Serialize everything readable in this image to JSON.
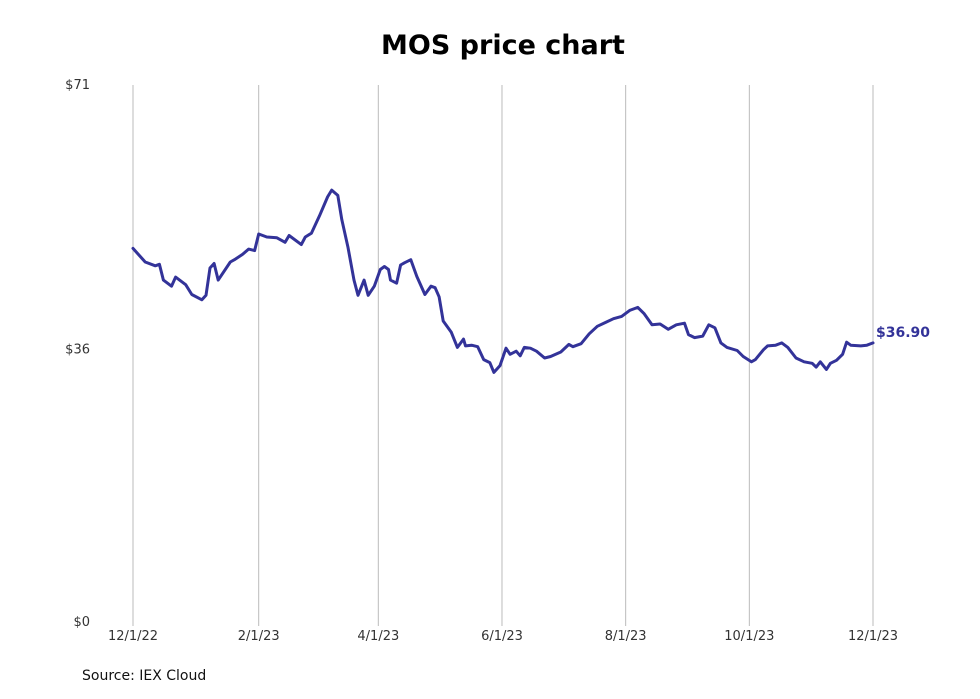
{
  "chart_data": {
    "type": "line",
    "title": "MOS price chart",
    "xlabel": "",
    "ylabel": "",
    "x_ticks": [
      "12/1/22",
      "2/1/23",
      "4/1/23",
      "6/1/23",
      "8/1/23",
      "10/1/23",
      "12/1/23"
    ],
    "y_ticks": [
      "$0",
      "$36",
      "$71"
    ],
    "ylim": [
      0,
      71
    ],
    "xlim": [
      "2022-12-01",
      "2023-12-01"
    ],
    "grid": "vertical",
    "line_color": "#333399",
    "last_value_label": "$36.90",
    "series": [
      {
        "points": [
          [
            "2022-12-01",
            49.4
          ],
          [
            "2022-12-07",
            47.6
          ],
          [
            "2022-12-12",
            47.1
          ],
          [
            "2022-12-14",
            47.3
          ],
          [
            "2022-12-16",
            45.2
          ],
          [
            "2022-12-20",
            44.4
          ],
          [
            "2022-12-22",
            45.6
          ],
          [
            "2022-12-27",
            44.6
          ],
          [
            "2022-12-30",
            43.3
          ],
          [
            "2023-01-04",
            42.6
          ],
          [
            "2023-01-06",
            43.2
          ],
          [
            "2023-01-08",
            46.8
          ],
          [
            "2023-01-10",
            47.4
          ],
          [
            "2023-01-12",
            45.2
          ],
          [
            "2023-01-18",
            47.6
          ],
          [
            "2023-01-20",
            47.9
          ],
          [
            "2023-01-24",
            48.6
          ],
          [
            "2023-01-27",
            49.3
          ],
          [
            "2023-01-30",
            49.1
          ],
          [
            "2023-02-01",
            51.3
          ],
          [
            "2023-02-05",
            50.9
          ],
          [
            "2023-02-10",
            50.8
          ],
          [
            "2023-02-14",
            50.2
          ],
          [
            "2023-02-16",
            51.1
          ],
          [
            "2023-02-22",
            49.9
          ],
          [
            "2023-02-24",
            50.9
          ],
          [
            "2023-02-27",
            51.4
          ],
          [
            "2023-03-03",
            53.7
          ],
          [
            "2023-03-07",
            56.2
          ],
          [
            "2023-03-09",
            57.1
          ],
          [
            "2023-03-12",
            56.4
          ],
          [
            "2023-03-14",
            53.2
          ],
          [
            "2023-03-17",
            49.6
          ],
          [
            "2023-03-20",
            45.2
          ],
          [
            "2023-03-22",
            43.2
          ],
          [
            "2023-03-25",
            45.2
          ],
          [
            "2023-03-27",
            43.2
          ],
          [
            "2023-03-30",
            44.4
          ],
          [
            "2023-04-02",
            46.6
          ],
          [
            "2023-04-04",
            47.0
          ],
          [
            "2023-04-06",
            46.6
          ],
          [
            "2023-04-07",
            45.2
          ],
          [
            "2023-04-10",
            44.8
          ],
          [
            "2023-04-12",
            47.2
          ],
          [
            "2023-04-14",
            47.5
          ],
          [
            "2023-04-17",
            47.9
          ],
          [
            "2023-04-20",
            45.7
          ],
          [
            "2023-04-24",
            43.3
          ],
          [
            "2023-04-27",
            44.4
          ],
          [
            "2023-04-29",
            44.2
          ],
          [
            "2023-05-01",
            43.0
          ],
          [
            "2023-05-03",
            39.8
          ],
          [
            "2023-05-07",
            38.3
          ],
          [
            "2023-05-10",
            36.3
          ],
          [
            "2023-05-13",
            37.4
          ],
          [
            "2023-05-14",
            36.5
          ],
          [
            "2023-05-17",
            36.6
          ],
          [
            "2023-05-20",
            36.4
          ],
          [
            "2023-05-23",
            34.7
          ],
          [
            "2023-05-26",
            34.3
          ],
          [
            "2023-05-28",
            33.0
          ],
          [
            "2023-05-31",
            33.9
          ],
          [
            "2023-06-03",
            36.2
          ],
          [
            "2023-06-05",
            35.4
          ],
          [
            "2023-06-08",
            35.8
          ],
          [
            "2023-06-10",
            35.2
          ],
          [
            "2023-06-12",
            36.3
          ],
          [
            "2023-06-15",
            36.2
          ],
          [
            "2023-06-18",
            35.8
          ],
          [
            "2023-06-22",
            34.9
          ],
          [
            "2023-06-25",
            35.1
          ],
          [
            "2023-06-30",
            35.7
          ],
          [
            "2023-07-04",
            36.7
          ],
          [
            "2023-07-06",
            36.4
          ],
          [
            "2023-07-10",
            36.8
          ],
          [
            "2023-07-14",
            38.1
          ],
          [
            "2023-07-18",
            39.1
          ],
          [
            "2023-07-22",
            39.6
          ],
          [
            "2023-07-26",
            40.1
          ],
          [
            "2023-07-30",
            40.4
          ],
          [
            "2023-08-03",
            41.2
          ],
          [
            "2023-08-07",
            41.6
          ],
          [
            "2023-08-10",
            40.8
          ],
          [
            "2023-08-14",
            39.3
          ],
          [
            "2023-08-18",
            39.4
          ],
          [
            "2023-08-22",
            38.7
          ],
          [
            "2023-08-26",
            39.3
          ],
          [
            "2023-08-30",
            39.5
          ],
          [
            "2023-09-01",
            38.0
          ],
          [
            "2023-09-04",
            37.6
          ],
          [
            "2023-09-08",
            37.8
          ],
          [
            "2023-09-11",
            39.3
          ],
          [
            "2023-09-14",
            38.9
          ],
          [
            "2023-09-17",
            36.9
          ],
          [
            "2023-09-20",
            36.3
          ],
          [
            "2023-09-25",
            35.9
          ],
          [
            "2023-09-28",
            35.1
          ],
          [
            "2023-10-02",
            34.4
          ],
          [
            "2023-10-04",
            34.7
          ],
          [
            "2023-10-08",
            36.0
          ],
          [
            "2023-10-10",
            36.5
          ],
          [
            "2023-10-14",
            36.6
          ],
          [
            "2023-10-17",
            36.9
          ],
          [
            "2023-10-20",
            36.3
          ],
          [
            "2023-10-24",
            34.9
          ],
          [
            "2023-10-28",
            34.4
          ],
          [
            "2023-11-01",
            34.2
          ],
          [
            "2023-11-03",
            33.7
          ],
          [
            "2023-11-05",
            34.4
          ],
          [
            "2023-11-08",
            33.4
          ],
          [
            "2023-11-10",
            34.2
          ],
          [
            "2023-11-13",
            34.6
          ],
          [
            "2023-11-16",
            35.4
          ],
          [
            "2023-11-18",
            37.0
          ],
          [
            "2023-11-20",
            36.6
          ],
          [
            "2023-11-25",
            36.5
          ],
          [
            "2023-11-28",
            36.6
          ],
          [
            "2023-12-01",
            36.9
          ]
        ]
      }
    ]
  },
  "source": "Source: IEX Cloud"
}
